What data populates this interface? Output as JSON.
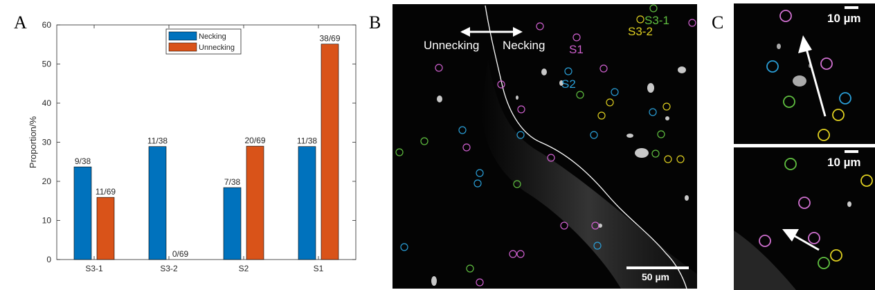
{
  "panels": {
    "a": "A",
    "b": "B",
    "c": "C"
  },
  "chart_data": {
    "type": "bar",
    "categories": [
      "S3-1",
      "S3-2",
      "S2",
      "S1"
    ],
    "series": [
      {
        "name": "Necking",
        "color": "#0072BD",
        "values": [
          23.7,
          28.9,
          18.4,
          28.9
        ],
        "labels": [
          "9/38",
          "11/38",
          "7/38",
          "11/38"
        ]
      },
      {
        "name": "Unnecking",
        "color": "#D95319",
        "values": [
          15.9,
          0,
          29.0,
          55.1
        ],
        "labels": [
          "11/69",
          "0/69",
          "20/69",
          "38/69"
        ]
      }
    ],
    "ylabel": "Proportion/%",
    "ylim": [
      0,
      60
    ],
    "yticks": [
      0,
      10,
      20,
      30,
      40,
      50,
      60
    ],
    "legend_position": "top-center"
  },
  "panel_b": {
    "label_unnecking": "Unnecking",
    "label_necking": "Necking",
    "label_s1": "S1",
    "label_s2": "S2",
    "label_s31": "S3-1",
    "label_s32": "S3-2",
    "scale": "50 µm",
    "colors": {
      "s1": "#d060d0",
      "s2": "#2a9fd8",
      "s31": "#60c040",
      "s32": "#e0d020"
    }
  },
  "panel_c": {
    "scale_top": "10 µm",
    "scale_bottom": "10 µm"
  }
}
